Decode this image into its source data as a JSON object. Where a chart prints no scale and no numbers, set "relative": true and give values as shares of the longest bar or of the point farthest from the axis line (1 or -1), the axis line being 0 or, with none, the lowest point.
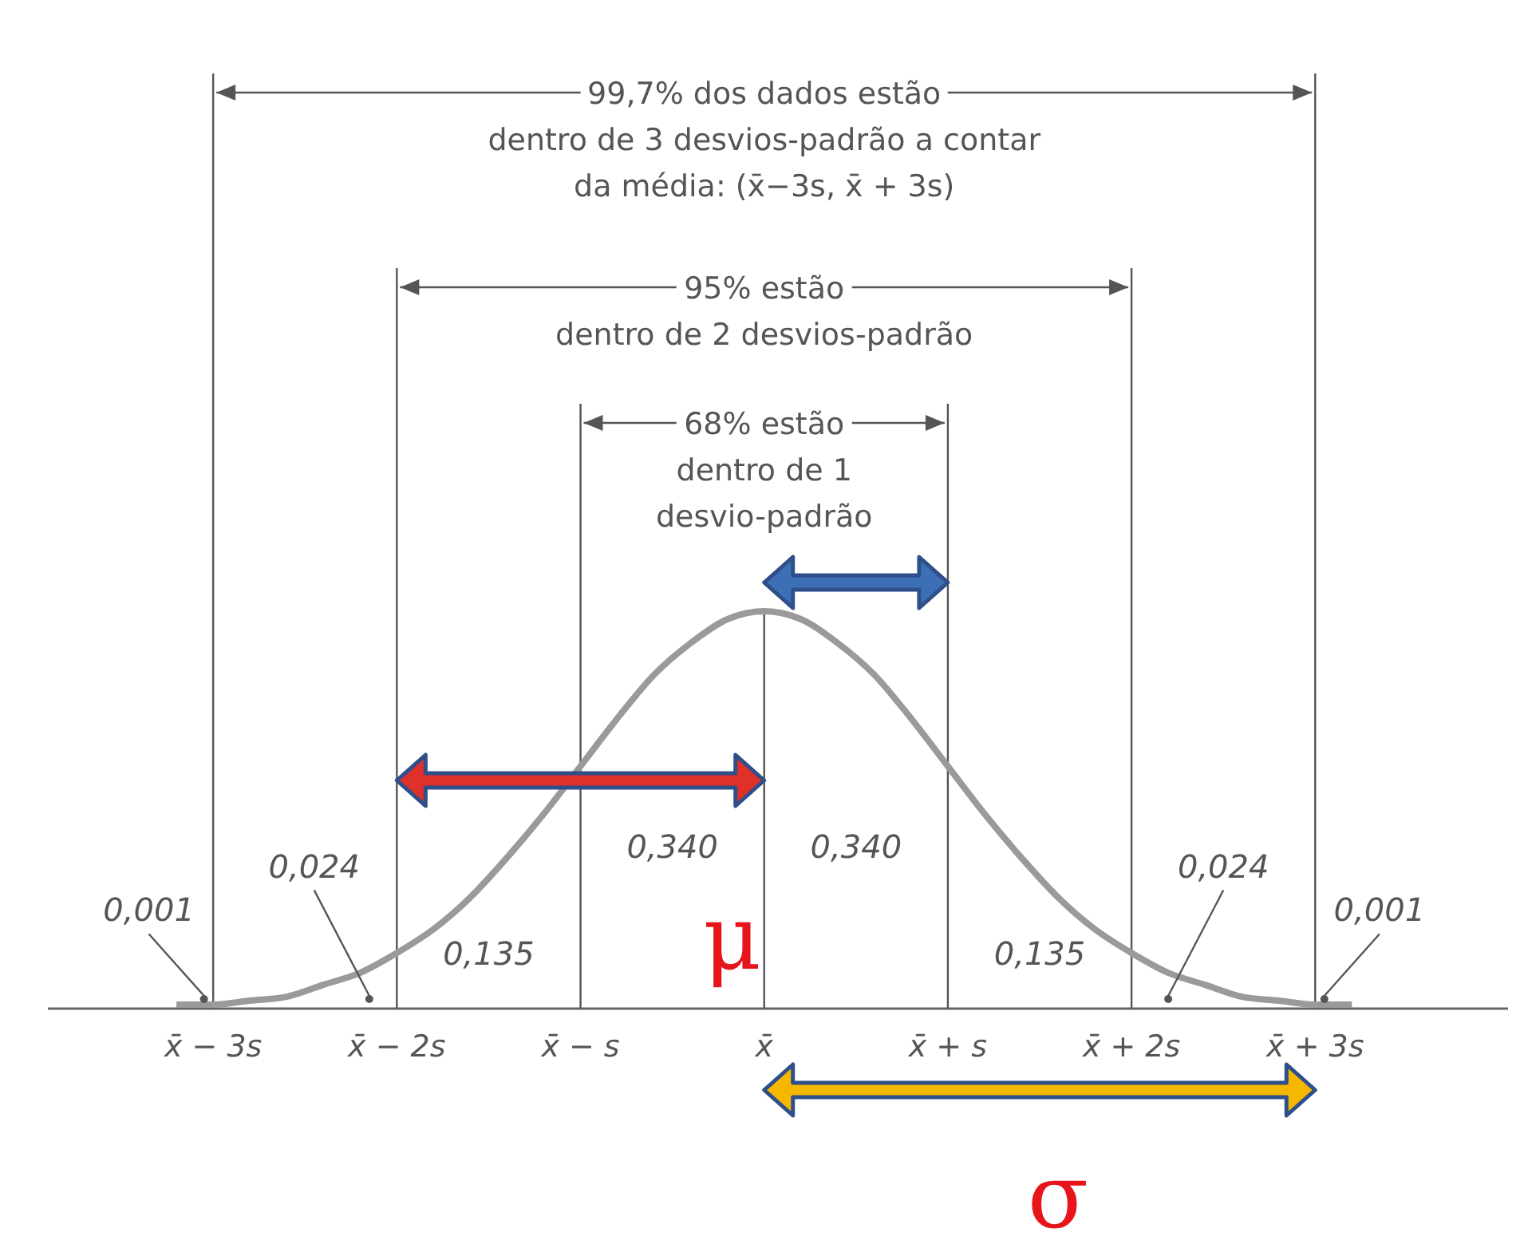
{
  "chart_data": {
    "type": "line",
    "relative": true,
    "grid": "x",
    "xlim": [
      -3.9,
      4.05
    ],
    "xticks": [
      {
        "value": -3,
        "label": "x̄ − 3s"
      },
      {
        "value": -2,
        "label": "x̄ − 2s"
      },
      {
        "value": -1,
        "label": "x̄ − s"
      },
      {
        "value": 0,
        "label": "x̄"
      },
      {
        "value": 1,
        "label": "x̄ + s"
      },
      {
        "value": 2,
        "label": "x̄ + 2s"
      },
      {
        "value": 3,
        "label": "x̄ + 3s"
      }
    ],
    "series": [
      {
        "color": "#9a9a9a",
        "x": [
          -3.2,
          -3,
          -2.8,
          -2.6,
          -2.4,
          -2.2,
          -2,
          -1.8,
          -1.6,
          -1.4,
          -1.2,
          -1,
          -0.8,
          -0.6,
          -0.4,
          -0.2,
          0,
          0.2,
          0.4,
          0.6,
          0.8,
          1,
          1.2,
          1.4,
          1.6,
          1.8,
          2,
          2.2,
          2.4,
          2.6,
          2.8,
          3,
          3.2
        ],
        "values": [
          0.01,
          0.01,
          0.02,
          0.03,
          0.06,
          0.09,
          0.14,
          0.2,
          0.28,
          0.38,
          0.49,
          0.61,
          0.73,
          0.84,
          0.92,
          0.98,
          1,
          0.98,
          0.92,
          0.84,
          0.73,
          0.61,
          0.49,
          0.38,
          0.28,
          0.2,
          0.14,
          0.09,
          0.06,
          0.03,
          0.02,
          0.01,
          0.01
        ]
      }
    ],
    "annotations": [
      "99,7% dos dados estão\ndentro de 3 desvios-padrão a contar\nda média: (x̄−3s, x̄ + 3s)",
      "95% estão\ndentro de 2 desvios-padrão",
      "68% estão\ndentro de 1\ndesvio-padrão",
      "0,001",
      "0,024",
      "0,135",
      "0,340",
      "0,340",
      "0,135",
      "0,024",
      "0,001",
      "μ",
      "σ"
    ]
  }
}
